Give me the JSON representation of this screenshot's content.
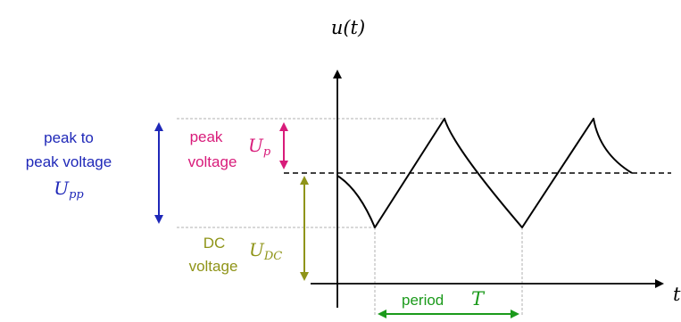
{
  "axes": {
    "y_label": "u(t)",
    "x_label": "t"
  },
  "labels": {
    "peak_to_peak": {
      "line1": "peak to",
      "line2": "peak voltage",
      "symbol_main": "U",
      "symbol_sub": "pp",
      "color": "#1f28b8"
    },
    "peak": {
      "line1": "peak",
      "line2": "voltage",
      "symbol_main": "U",
      "symbol_sub": "p",
      "color": "#d81b7a"
    },
    "dc": {
      "line1": "DC",
      "line2": "voltage",
      "symbol_main": "U",
      "symbol_sub": "DC",
      "color": "#8f9418"
    },
    "period": {
      "text": "period",
      "symbol": "T",
      "color": "#1b9a1b"
    }
  },
  "colors": {
    "axis": "#000000",
    "signal": "#000000",
    "guide": "#b0b0b0"
  }
}
